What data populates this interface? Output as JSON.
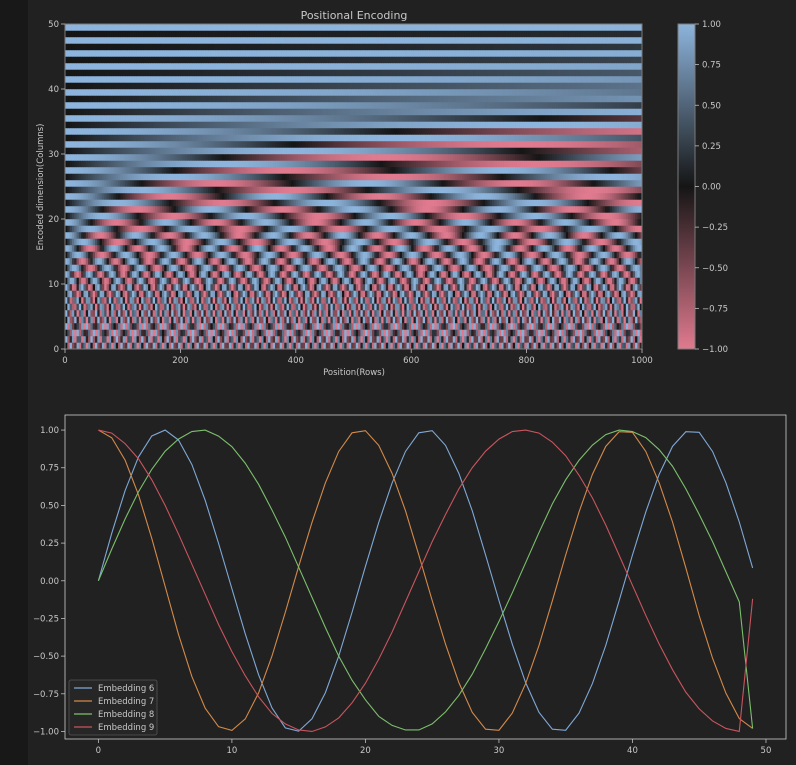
{
  "colors": {
    "background": "#181818",
    "panel": "#212121",
    "axis": "#bfbfbf",
    "text": "#c8c8c8",
    "cmap_low": "#e07a8f",
    "cmap_mid": "#151515",
    "cmap_high": "#8db4dc"
  },
  "chart_data": [
    {
      "type": "heatmap",
      "title": "Positional Encoding",
      "xlabel": "Position(Rows)",
      "ylabel": "Encoded dimension(Columns)",
      "xlim": [
        0,
        1000
      ],
      "ylim": [
        0,
        50
      ],
      "x_ticks": [
        "0",
        "200",
        "400",
        "600",
        "800",
        "1000"
      ],
      "y_ticks": [
        "0",
        "10",
        "20",
        "30",
        "40",
        "50"
      ],
      "values_formula": "dim 2i: sin(pos / 10000^(2i/50)); dim 2i+1: cos(pos / 10000^(2i/50))",
      "colorbar": {
        "range": [
          -1.0,
          1.0
        ],
        "ticks": [
          "1.00",
          "0.75",
          "0.50",
          "0.25",
          "0.00",
          "−0.25",
          "−0.50",
          "−0.75",
          "−1.00"
        ]
      }
    },
    {
      "type": "line",
      "xlim": [
        -2.5,
        51.5
      ],
      "ylim": [
        -1.05,
        1.1
      ],
      "x": [
        0,
        1,
        2,
        3,
        4,
        5,
        6,
        7,
        8,
        9,
        10,
        11,
        12,
        13,
        14,
        15,
        16,
        17,
        18,
        19,
        20,
        21,
        22,
        23,
        24,
        25,
        26,
        27,
        28,
        29,
        30,
        31,
        32,
        33,
        34,
        35,
        36,
        37,
        38,
        39,
        40,
        41,
        42,
        43,
        44,
        45,
        46,
        47,
        48,
        49
      ],
      "x_ticks": [
        "0",
        "10",
        "20",
        "30",
        "40",
        "50"
      ],
      "y_ticks": [
        "1.00",
        "0.75",
        "0.50",
        "0.25",
        "0.00",
        "−0.25",
        "−0.50",
        "−0.75",
        "−1.00"
      ],
      "legend_position": "lower-left",
      "series": [
        {
          "name": "Embedding 6",
          "color": "#7fa8d6",
          "values": [
            0.0,
            0.315,
            0.598,
            0.821,
            0.961,
            1.0,
            0.934,
            0.772,
            0.534,
            0.248,
            -0.053,
            -0.352,
            -0.624,
            -0.843,
            -0.976,
            -0.998,
            -0.916,
            -0.743,
            -0.5,
            -0.209,
            0.095,
            0.388,
            0.649,
            0.858,
            0.982,
            0.996,
            0.898,
            0.712,
            0.465,
            0.171,
            -0.131,
            -0.421,
            -0.676,
            -0.873,
            -0.985,
            -0.992,
            -0.878,
            -0.682,
            -0.429,
            -0.133,
            0.171,
            0.457,
            0.706,
            0.892,
            0.989,
            0.985,
            0.858,
            0.65,
            0.39,
            0.085
          ]
        },
        {
          "name": "Embedding 7",
          "color": "#d38a4a",
          "values": [
            1.0,
            0.949,
            0.801,
            0.571,
            0.281,
            -0.037,
            -0.356,
            -0.635,
            -0.846,
            -0.968,
            -0.993,
            -0.917,
            -0.744,
            -0.5,
            -0.209,
            0.095,
            0.388,
            0.649,
            0.858,
            0.982,
            0.996,
            0.898,
            0.712,
            0.465,
            0.171,
            -0.131,
            -0.421,
            -0.676,
            -0.873,
            -0.985,
            -0.992,
            -0.878,
            -0.682,
            -0.429,
            -0.133,
            0.171,
            0.457,
            0.706,
            0.892,
            0.989,
            0.985,
            0.858,
            0.65,
            0.39,
            0.085,
            -0.232,
            -0.514,
            -0.746,
            -0.914,
            -0.98
          ]
        },
        {
          "name": "Embedding 8",
          "color": "#7cbf6c",
          "values": [
            0.0,
            0.21,
            0.41,
            0.59,
            0.74,
            0.86,
            0.94,
            0.99,
            1.0,
            0.96,
            0.89,
            0.78,
            0.64,
            0.47,
            0.29,
            0.09,
            -0.11,
            -0.31,
            -0.5,
            -0.66,
            -0.79,
            -0.9,
            -0.96,
            -0.99,
            -0.99,
            -0.95,
            -0.87,
            -0.76,
            -0.62,
            -0.45,
            -0.27,
            -0.08,
            0.12,
            0.32,
            0.51,
            0.67,
            0.8,
            0.9,
            0.97,
            1.0,
            0.99,
            0.95,
            0.87,
            0.76,
            0.61,
            0.44,
            0.26,
            0.06,
            -0.14,
            -0.98
          ]
        },
        {
          "name": "Embedding 9",
          "color": "#c8555e",
          "values": [
            1.0,
            0.98,
            0.91,
            0.81,
            0.67,
            0.5,
            0.31,
            0.11,
            -0.09,
            -0.29,
            -0.47,
            -0.63,
            -0.77,
            -0.88,
            -0.95,
            -0.99,
            -1.0,
            -0.97,
            -0.91,
            -0.81,
            -0.68,
            -0.52,
            -0.34,
            -0.14,
            0.06,
            0.26,
            0.44,
            0.61,
            0.75,
            0.86,
            0.94,
            0.99,
            1.0,
            0.98,
            0.92,
            0.83,
            0.7,
            0.55,
            0.37,
            0.17,
            -0.03,
            -0.23,
            -0.42,
            -0.59,
            -0.74,
            -0.85,
            -0.93,
            -0.98,
            -1.0,
            -0.12
          ]
        }
      ]
    }
  ]
}
